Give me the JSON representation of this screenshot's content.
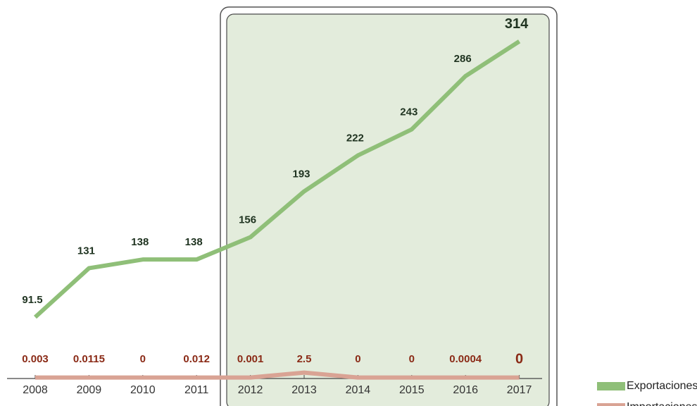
{
  "chart_data": {
    "type": "line",
    "categories": [
      "2008",
      "2009",
      "2010",
      "2011",
      "2012",
      "2013",
      "2014",
      "2015",
      "2016",
      "2017"
    ],
    "series": [
      {
        "name": "Exportaciones",
        "color": "#8fbf78",
        "label_color": "#1f3320",
        "values": [
          91.5,
          131,
          138,
          138,
          156,
          193,
          222,
          243,
          286,
          314
        ]
      },
      {
        "name": "Importaciones",
        "color": "#d9a394",
        "label_color": "#8a2a16",
        "axis": "y2",
        "values": [
          0.003,
          0.0115,
          0,
          0.012,
          0.001,
          2.5,
          0,
          0,
          0.0004,
          0
        ]
      }
    ],
    "ylim": [
      42,
      336
    ],
    "y2lim": [
      -0.5,
      184
    ],
    "legend": "lower right"
  }
}
